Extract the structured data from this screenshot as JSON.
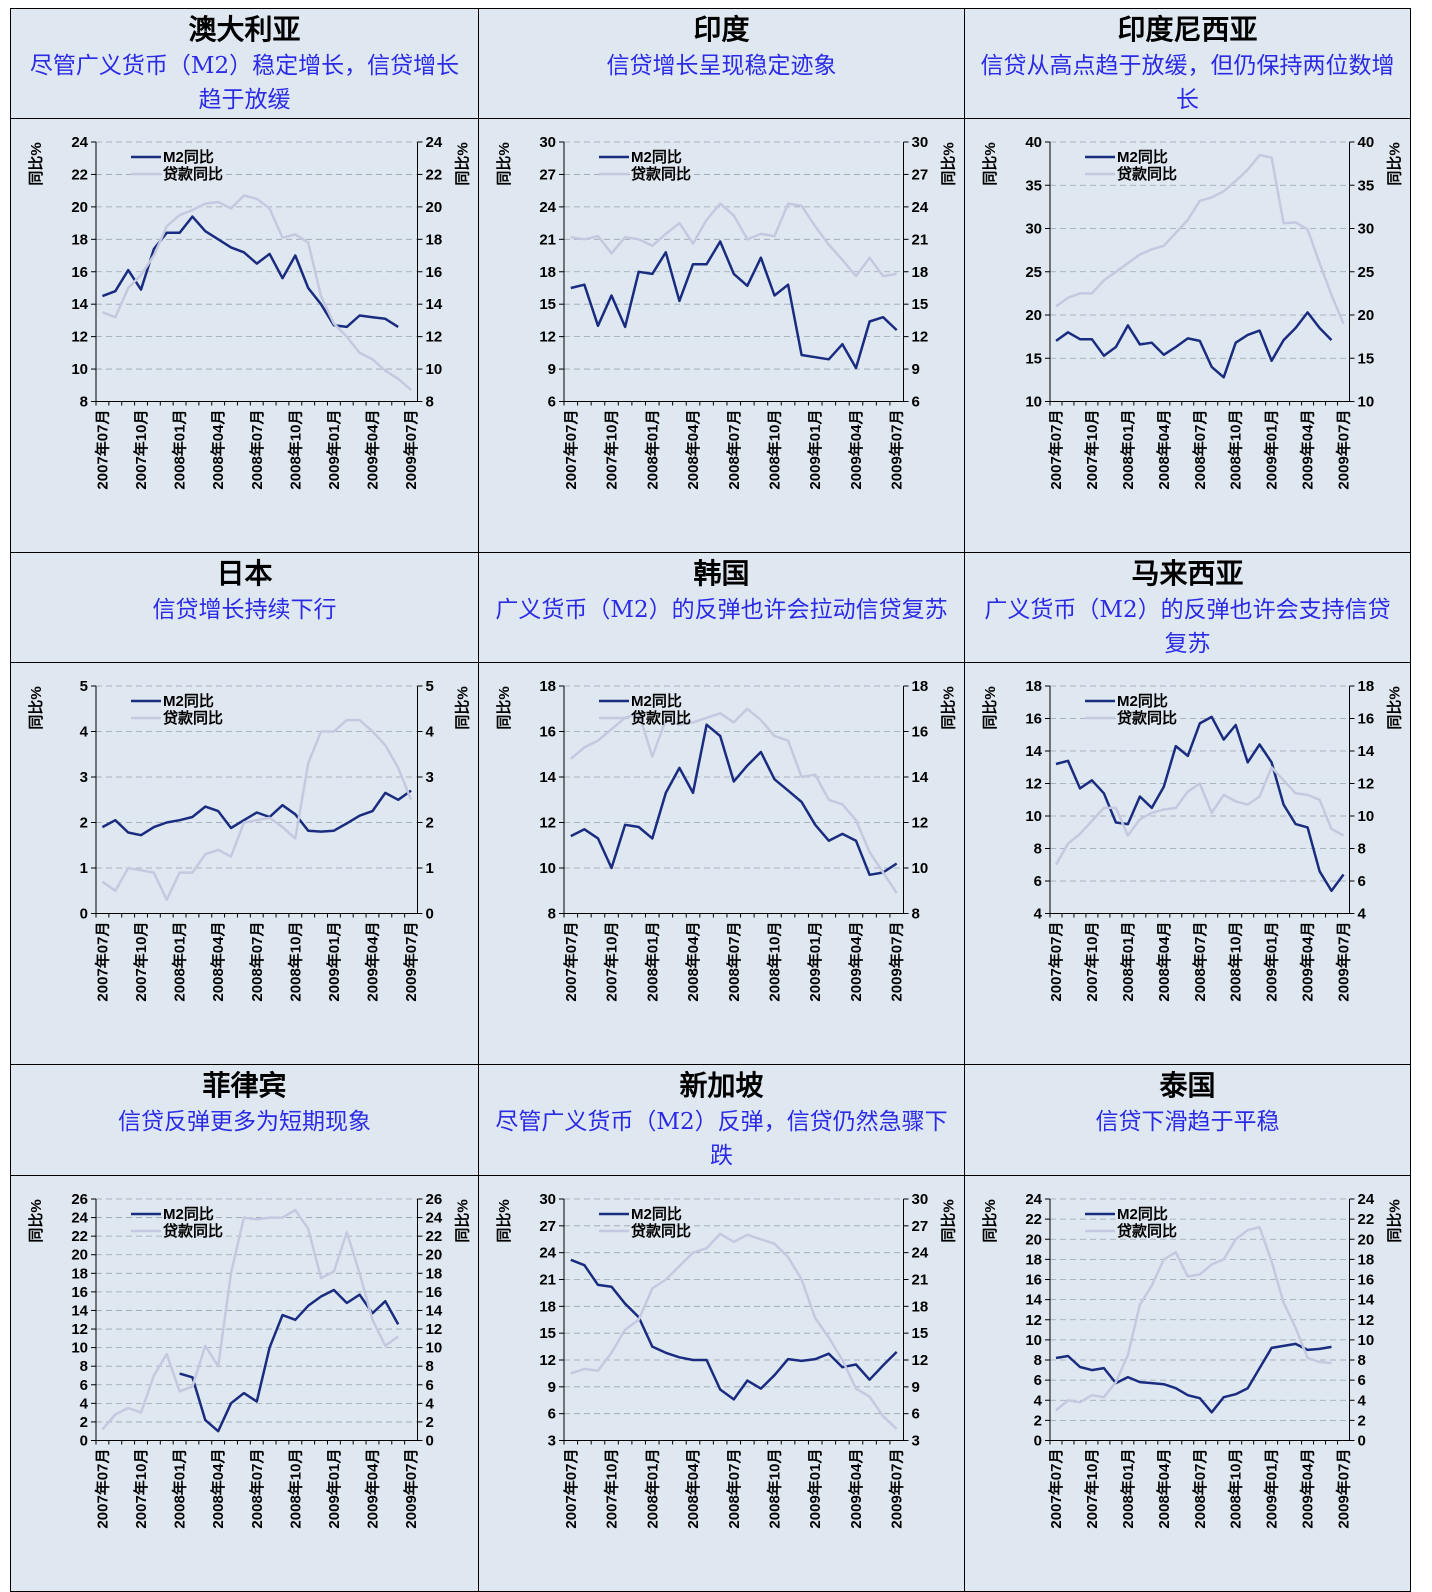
{
  "chart_data": [
    {
      "type": "line",
      "title": "澳大利亚",
      "subtitle": "尽管广义货币（M2）稳定增长，信贷增长趋于放缓",
      "ylabel": "同比%",
      "y2label": "同比%",
      "legend": "upper left",
      "categories": [
        "2007年07月",
        null,
        null,
        "2007年10月",
        null,
        null,
        "2008年01月",
        null,
        null,
        "2008年04月",
        null,
        null,
        "2008年07月",
        null,
        null,
        "2008年10月",
        null,
        null,
        "2009年01月",
        null,
        null,
        "2009年04月",
        null,
        null,
        "2009年07月"
      ],
      "ylim": [
        8,
        24
      ],
      "yticks": [
        8,
        10,
        12,
        14,
        16,
        18,
        20,
        22,
        24
      ],
      "y2lim": [
        8,
        24
      ],
      "y2ticks": [
        8,
        10,
        12,
        14,
        16,
        18,
        20,
        22,
        24
      ],
      "grid": true,
      "series": [
        {
          "name": "M2同比",
          "color": "#1a2c80",
          "values": [
            14.5,
            14.8,
            16.1,
            14.9,
            17.4,
            18.4,
            18.4,
            19.4,
            18.5,
            18.0,
            17.5,
            17.2,
            16.5,
            17.1,
            15.6,
            17.0,
            15.0,
            14.0,
            12.7,
            12.6,
            13.3,
            13.2,
            13.1,
            12.6,
            null
          ]
        },
        {
          "name": "贷款同比",
          "color": "#c5c9e0",
          "axis": "y2",
          "values": [
            13.5,
            13.2,
            15.0,
            15.8,
            17.0,
            18.8,
            19.5,
            19.8,
            20.2,
            20.3,
            19.9,
            20.7,
            20.5,
            19.9,
            18.1,
            18.3,
            17.8,
            14.5,
            12.8,
            12.0,
            11.0,
            10.6,
            9.9,
            9.4,
            8.7
          ]
        }
      ]
    },
    {
      "type": "line",
      "title": "印度",
      "subtitle": "信贷增长呈现稳定迹象",
      "ylabel": "同比%",
      "y2label": "同比%",
      "legend": "upper left",
      "categories": [
        "2007年07月",
        null,
        null,
        "2007年10月",
        null,
        null,
        "2008年01月",
        null,
        null,
        "2008年04月",
        null,
        null,
        "2008年07月",
        null,
        null,
        "2008年10月",
        null,
        null,
        "2009年01月",
        null,
        null,
        "2009年04月",
        null,
        null,
        "2009年07月"
      ],
      "ylim": [
        6,
        30
      ],
      "yticks": [
        6,
        9,
        12,
        15,
        18,
        21,
        24,
        27,
        30
      ],
      "y2lim": [
        6,
        30
      ],
      "y2ticks": [
        6,
        9,
        12,
        15,
        18,
        21,
        24,
        27,
        30
      ],
      "grid": true,
      "series": [
        {
          "name": "M2同比",
          "color": "#1a2c80",
          "values": [
            16.5,
            16.8,
            13.0,
            15.8,
            12.9,
            18.0,
            17.8,
            19.8,
            15.3,
            18.7,
            18.7,
            20.8,
            17.8,
            16.7,
            19.3,
            15.8,
            16.8,
            10.3,
            10.1,
            9.9,
            11.3,
            9.1,
            13.4,
            13.8,
            12.6
          ]
        },
        {
          "name": "贷款同比",
          "color": "#c5c9e0",
          "axis": "y2",
          "values": [
            21.2,
            21.0,
            21.3,
            19.7,
            21.2,
            21.0,
            20.4,
            21.5,
            22.5,
            20.6,
            22.8,
            24.3,
            23.2,
            21.0,
            21.5,
            21.3,
            24.3,
            24.1,
            22.2,
            20.5,
            19.1,
            17.6,
            19.3,
            17.6,
            17.8
          ]
        }
      ]
    },
    {
      "type": "line",
      "title": "印度尼西亚",
      "subtitle": "信贷从高点趋于放缓，但仍保持两位数增长",
      "ylabel": "同比%",
      "y2label": "同比%",
      "legend": "upper left",
      "categories": [
        "2007年07月",
        null,
        null,
        "2007年10月",
        null,
        null,
        "2008年01月",
        null,
        null,
        "2008年04月",
        null,
        null,
        "2008年07月",
        null,
        null,
        "2008年10月",
        null,
        null,
        "2009年01月",
        null,
        null,
        "2009年04月",
        null,
        null,
        "2009年07月"
      ],
      "ylim": [
        10,
        40
      ],
      "yticks": [
        10,
        15,
        20,
        25,
        30,
        35,
        40
      ],
      "y2lim": [
        10,
        40
      ],
      "y2ticks": [
        10,
        15,
        20,
        25,
        30,
        35,
        40
      ],
      "grid": true,
      "series": [
        {
          "name": "M2同比",
          "color": "#1a2c80",
          "values": [
            17.0,
            18.0,
            17.2,
            17.2,
            15.3,
            16.3,
            18.8,
            16.6,
            16.8,
            15.4,
            16.3,
            17.3,
            17.0,
            14.0,
            12.8,
            16.8,
            17.7,
            18.2,
            14.7,
            17.1,
            18.5,
            20.3,
            18.5,
            17.1,
            null
          ]
        },
        {
          "name": "贷款同比",
          "color": "#c5c9e0",
          "axis": "y2",
          "values": [
            21.0,
            22.0,
            22.5,
            22.5,
            24.0,
            25.0,
            26.0,
            27.0,
            27.6,
            28.0,
            29.5,
            31.0,
            33.2,
            33.6,
            34.3,
            35.5,
            36.8,
            38.5,
            38.2,
            30.6,
            30.7,
            29.9,
            26.0,
            22.3,
            19.0
          ]
        }
      ]
    },
    {
      "type": "line",
      "title": "日本",
      "subtitle": "信贷增长持续下行",
      "ylabel": "同比%",
      "y2label": "同比%",
      "legend": "upper left",
      "categories": [
        "2007年07月",
        null,
        null,
        "2007年10月",
        null,
        null,
        "2008年01月",
        null,
        null,
        "2008年04月",
        null,
        null,
        "2008年07月",
        null,
        null,
        "2008年10月",
        null,
        null,
        "2009年01月",
        null,
        null,
        "2009年04月",
        null,
        null,
        "2009年07月"
      ],
      "ylim": [
        0,
        5
      ],
      "yticks": [
        0,
        1,
        2,
        3,
        4,
        5
      ],
      "y2lim": [
        0,
        5
      ],
      "y2ticks": [
        0,
        1,
        2,
        3,
        4,
        5
      ],
      "grid": true,
      "series": [
        {
          "name": "M2同比",
          "color": "#1a2c80",
          "values": [
            1.9,
            2.05,
            1.78,
            1.72,
            1.9,
            2.0,
            2.05,
            2.12,
            2.35,
            2.25,
            1.88,
            2.05,
            2.22,
            2.12,
            2.38,
            2.18,
            1.82,
            1.8,
            1.82,
            1.98,
            2.15,
            2.25,
            2.65,
            2.5,
            2.7
          ]
        },
        {
          "name": "贷款同比",
          "color": "#c5c9e0",
          "axis": "y2",
          "values": [
            0.7,
            0.5,
            1.0,
            0.95,
            0.9,
            0.3,
            0.9,
            0.9,
            1.3,
            1.4,
            1.25,
            2.0,
            2.05,
            2.1,
            1.9,
            1.65,
            3.3,
            4.0,
            4.0,
            4.25,
            4.25,
            4.0,
            3.7,
            3.2,
            2.5
          ]
        }
      ]
    },
    {
      "type": "line",
      "title": "韩国",
      "subtitle": "广义货币（M2）的反弹也许会拉动信贷复苏",
      "ylabel": "同比%",
      "y2label": "同比%",
      "legend": "upper left",
      "categories": [
        "2007年07月",
        null,
        null,
        "2007年10月",
        null,
        null,
        "2008年01月",
        null,
        null,
        "2008年04月",
        null,
        null,
        "2008年07月",
        null,
        null,
        "2008年10月",
        null,
        null,
        "2009年01月",
        null,
        null,
        "2009年04月",
        null,
        null,
        "2009年07月"
      ],
      "ylim": [
        8,
        18
      ],
      "yticks": [
        8,
        10,
        12,
        14,
        16,
        18
      ],
      "y2lim": [
        8,
        18
      ],
      "y2ticks": [
        8,
        10,
        12,
        14,
        16,
        18
      ],
      "grid": true,
      "series": [
        {
          "name": "M2同比",
          "color": "#1a2c80",
          "values": [
            11.4,
            11.7,
            11.3,
            10.0,
            11.9,
            11.8,
            11.3,
            13.3,
            14.4,
            13.3,
            16.3,
            15.8,
            13.8,
            14.5,
            15.1,
            13.9,
            13.4,
            12.9,
            11.9,
            11.2,
            11.5,
            11.2,
            9.7,
            9.8,
            10.2
          ]
        },
        {
          "name": "贷款同比",
          "color": "#c5c9e0",
          "axis": "y2",
          "values": [
            14.8,
            15.3,
            15.6,
            16.1,
            16.6,
            16.8,
            14.9,
            16.5,
            16.3,
            16.4,
            16.6,
            16.8,
            16.4,
            17.0,
            16.5,
            15.8,
            15.6,
            14.0,
            14.1,
            13.0,
            12.8,
            12.1,
            10.7,
            9.8,
            8.9
          ]
        }
      ]
    },
    {
      "type": "line",
      "title": "马来西亚",
      "subtitle": "广义货币（M2）的反弹也许会支持信贷复苏",
      "ylabel": "同比%",
      "y2label": "同比%",
      "legend": "upper left",
      "categories": [
        "2007年07月",
        null,
        null,
        "2007年10月",
        null,
        null,
        "2008年01月",
        null,
        null,
        "2008年04月",
        null,
        null,
        "2008年07月",
        null,
        null,
        "2008年10月",
        null,
        null,
        "2009年01月",
        null,
        null,
        "2009年04月",
        null,
        null,
        "2009年07月"
      ],
      "ylim": [
        4,
        18
      ],
      "yticks": [
        4,
        6,
        8,
        10,
        12,
        14,
        16,
        18
      ],
      "y2lim": [
        4,
        18
      ],
      "y2ticks": [
        4,
        6,
        8,
        10,
        12,
        14,
        16,
        18
      ],
      "grid": true,
      "series": [
        {
          "name": "M2同比",
          "color": "#1a2c80",
          "values": [
            13.2,
            13.4,
            11.7,
            12.2,
            11.4,
            9.6,
            9.5,
            11.2,
            10.5,
            11.8,
            14.3,
            13.7,
            15.7,
            16.1,
            14.7,
            15.6,
            13.3,
            14.4,
            13.3,
            10.7,
            9.5,
            9.3,
            6.6,
            5.4,
            6.4
          ]
        },
        {
          "name": "贷款同比",
          "color": "#c5c9e0",
          "axis": "y2",
          "values": [
            7.0,
            8.3,
            8.9,
            9.7,
            10.5,
            10.5,
            8.8,
            9.8,
            10.2,
            10.4,
            10.5,
            11.5,
            12.0,
            10.2,
            11.3,
            10.9,
            10.7,
            11.2,
            13.0,
            12.2,
            11.4,
            11.3,
            11.0,
            9.2,
            8.8
          ]
        }
      ]
    },
    {
      "type": "line",
      "title": "菲律宾",
      "subtitle": "信贷反弹更多为短期现象",
      "ylabel": "同比%",
      "y2label": "同比%",
      "legend": "upper left",
      "categories": [
        "2007年07月",
        null,
        null,
        "2007年10月",
        null,
        null,
        "2008年01月",
        null,
        null,
        "2008年04月",
        null,
        null,
        "2008年07月",
        null,
        null,
        "2008年10月",
        null,
        null,
        "2009年01月",
        null,
        null,
        "2009年04月",
        null,
        null,
        "2009年07月"
      ],
      "ylim": [
        0,
        26
      ],
      "yticks": [
        0,
        2,
        4,
        6,
        8,
        10,
        12,
        14,
        16,
        18,
        20,
        22,
        24,
        26
      ],
      "y2lim": [
        0,
        26
      ],
      "y2ticks": [
        0,
        2,
        4,
        6,
        8,
        10,
        12,
        14,
        16,
        18,
        20,
        22,
        24,
        26
      ],
      "grid": true,
      "series": [
        {
          "name": "M2同比",
          "color": "#1a2c80",
          "values": [
            null,
            null,
            null,
            null,
            null,
            null,
            7.2,
            6.8,
            2.2,
            1.0,
            4.0,
            5.1,
            4.2,
            10.0,
            13.5,
            13.0,
            14.5,
            15.5,
            16.2,
            14.8,
            15.7,
            13.7,
            15.0,
            12.5,
            null
          ]
        },
        {
          "name": "贷款同比",
          "color": "#c5c9e0",
          "axis": "y2",
          "values": [
            1.2,
            2.8,
            3.5,
            3.0,
            7.0,
            9.3,
            5.3,
            5.8,
            10.2,
            8.0,
            18.0,
            24.0,
            23.8,
            24.0,
            24.0,
            24.8,
            22.8,
            17.5,
            18.2,
            22.4,
            18.0,
            13.0,
            10.2,
            11.2,
            null
          ]
        }
      ]
    },
    {
      "type": "line",
      "title": "新加坡",
      "subtitle": "尽管广义货币（M2）反弹，信贷仍然急骤下跌",
      "ylabel": "同比%",
      "y2label": "同比%",
      "legend": "upper left",
      "categories": [
        "2007年07月",
        null,
        null,
        "2007年10月",
        null,
        null,
        "2008年01月",
        null,
        null,
        "2008年04月",
        null,
        null,
        "2008年07月",
        null,
        null,
        "2008年10月",
        null,
        null,
        "2009年01月",
        null,
        null,
        "2009年04月",
        null,
        null,
        "2009年07月"
      ],
      "ylim": [
        3,
        30
      ],
      "yticks": [
        3,
        6,
        9,
        12,
        15,
        18,
        21,
        24,
        27,
        30
      ],
      "y2lim": [
        3,
        30
      ],
      "y2ticks": [
        3,
        6,
        9,
        12,
        15,
        18,
        21,
        24,
        27,
        30
      ],
      "grid": true,
      "series": [
        {
          "name": "M2同比",
          "color": "#1a2c80",
          "values": [
            23.2,
            22.6,
            20.4,
            20.2,
            18.3,
            16.8,
            13.5,
            12.8,
            12.3,
            12.0,
            12.0,
            8.7,
            7.6,
            9.7,
            8.8,
            10.3,
            12.1,
            11.9,
            12.1,
            12.7,
            11.2,
            11.5,
            9.8,
            11.4,
            12.9
          ]
        },
        {
          "name": "贷款同比",
          "color": "#c5c9e0",
          "axis": "y2",
          "values": [
            10.5,
            11.0,
            10.8,
            12.8,
            15.4,
            16.5,
            20.0,
            21.0,
            22.5,
            24.0,
            24.5,
            26.1,
            25.2,
            26.0,
            25.5,
            25.0,
            23.5,
            21.0,
            16.7,
            14.5,
            12.0,
            8.8,
            7.9,
            5.7,
            4.3
          ]
        }
      ]
    },
    {
      "type": "line",
      "title": "泰国",
      "subtitle": "信贷下滑趋于平稳",
      "ylabel": "同比%",
      "y2label": "同比%",
      "legend": "upper left",
      "categories": [
        "2007年07月",
        null,
        null,
        "2007年10月",
        null,
        null,
        "2008年01月",
        null,
        null,
        "2008年04月",
        null,
        null,
        "2008年07月",
        null,
        null,
        "2008年10月",
        null,
        null,
        "2009年01月",
        null,
        null,
        "2009年04月",
        null,
        null,
        "2009年07月"
      ],
      "ylim": [
        0,
        24
      ],
      "yticks": [
        0,
        2,
        4,
        6,
        8,
        10,
        12,
        14,
        16,
        18,
        20,
        22,
        24
      ],
      "y2lim": [
        0,
        24
      ],
      "y2ticks": [
        0,
        2,
        4,
        6,
        8,
        10,
        12,
        14,
        16,
        18,
        20,
        22,
        24
      ],
      "grid": true,
      "series": [
        {
          "name": "M2同比",
          "color": "#1a2c80",
          "values": [
            8.2,
            8.4,
            7.3,
            7.0,
            7.2,
            5.7,
            6.3,
            5.8,
            5.7,
            5.6,
            5.2,
            4.5,
            4.2,
            2.8,
            4.3,
            4.6,
            5.2,
            7.2,
            9.2,
            9.4,
            9.6,
            9.0,
            9.1,
            9.3,
            null
          ]
        },
        {
          "name": "贷款同比",
          "color": "#c5c9e0",
          "axis": "y2",
          "values": [
            3.0,
            4.0,
            3.8,
            4.5,
            4.3,
            5.8,
            8.5,
            13.5,
            15.4,
            18.0,
            18.7,
            16.3,
            16.5,
            17.5,
            18.0,
            20.0,
            20.9,
            21.2,
            17.8,
            13.7,
            11.2,
            8.2,
            7.8,
            7.7,
            null
          ]
        }
      ]
    }
  ]
}
